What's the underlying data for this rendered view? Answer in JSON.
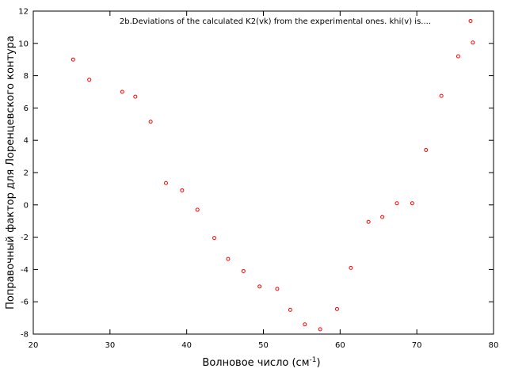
{
  "chart_data": {
    "type": "scatter",
    "xlabel_main": "Волновое число (см",
    "xlabel_sup": "-1",
    "xlabel_close": ")",
    "ylabel": "Поправочный фактор для Лоренцевского контура",
    "xlim": [
      20,
      80
    ],
    "ylim": [
      -8,
      12
    ],
    "xticks": [
      20,
      30,
      40,
      50,
      60,
      70,
      80
    ],
    "yticks": [
      -8,
      -6,
      -4,
      -2,
      0,
      2,
      4,
      6,
      8,
      10,
      12
    ],
    "grid": false,
    "legend_position": "top-right",
    "marker_color": "#ff0000",
    "series": [
      {
        "name": "2b.Deviations of the calculated K2(vk) from the experimental ones. khi(v) is....",
        "x": [
          25.2,
          27.3,
          31.6,
          33.3,
          35.3,
          37.3,
          39.4,
          41.4,
          43.6,
          45.4,
          47.4,
          49.5,
          51.8,
          53.5,
          55.4,
          57.4,
          59.6,
          61.4,
          63.7,
          65.5,
          67.4,
          69.4,
          71.2,
          73.2,
          75.4,
          77.3
        ],
        "y": [
          9.0,
          7.75,
          7.0,
          6.7,
          5.15,
          1.35,
          0.9,
          -0.3,
          -2.05,
          -3.35,
          -4.1,
          -5.05,
          -5.2,
          -6.5,
          -7.4,
          -7.7,
          -6.45,
          -3.9,
          -1.05,
          -0.75,
          0.1,
          0.1,
          3.4,
          6.75,
          9.2,
          10.05
        ]
      }
    ]
  }
}
